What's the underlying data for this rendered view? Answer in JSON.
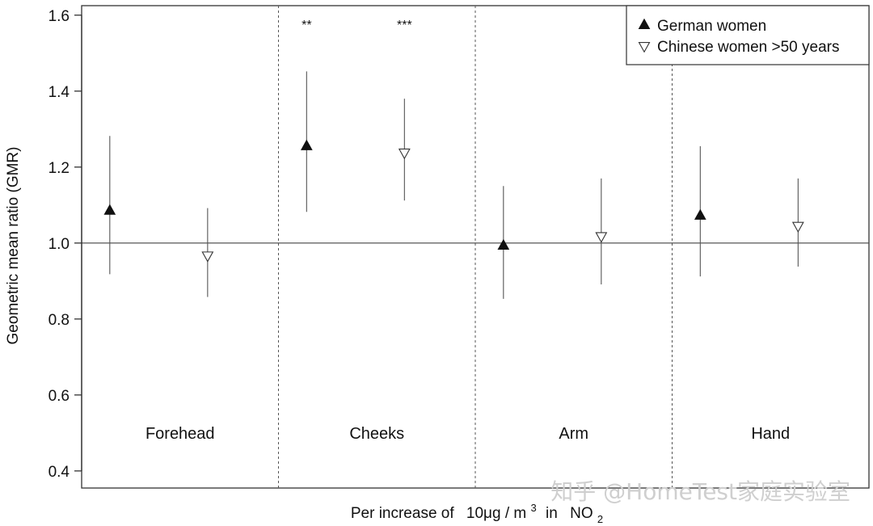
{
  "chart_data": {
    "type": "scatter",
    "title": "",
    "ylabel": "Geometric mean ratio (GMR)",
    "xlabel_parts": {
      "prefix": "Per increase of",
      "value": "10μg",
      "slash": "/",
      "unit": "m",
      "unit_sup": "3",
      "middle": "in",
      "pollutant": "NO",
      "pollutant_sub": "2"
    },
    "ylim": [
      0.355,
      1.625
    ],
    "yticks": [
      0.4,
      0.6,
      0.8,
      1.0,
      1.2,
      1.4,
      1.6
    ],
    "ytick_labels": [
      "0.4",
      "0.6",
      "0.8",
      "1.0",
      "1.2",
      "1.4",
      "1.6"
    ],
    "reference_line": 1.0,
    "categories": [
      "Forehead",
      "Cheeks",
      "Arm",
      "Hand"
    ],
    "series": [
      {
        "name": "German women",
        "marker": "filled-triangle-up",
        "values": [
          1.085,
          1.255,
          0.993,
          1.072
        ],
        "ci_low": [
          0.918,
          1.082,
          0.853,
          0.912
        ],
        "ci_high": [
          1.282,
          1.452,
          1.15,
          1.255
        ]
      },
      {
        "name": "Chinese women >50 years",
        "marker": "open-triangle-down",
        "values": [
          0.967,
          1.238,
          1.018,
          1.045
        ],
        "ci_low": [
          0.858,
          1.112,
          0.891,
          0.938
        ],
        "ci_high": [
          1.092,
          1.38,
          1.17,
          1.17
        ]
      }
    ],
    "significance": [
      {
        "category": "Cheeks",
        "series": "German women",
        "label": "**"
      },
      {
        "category": "Cheeks",
        "series": "Chinese women >50 years",
        "label": "***"
      }
    ],
    "legend_position": "top-right",
    "grid": false
  },
  "watermark": "知乎 @HomeTest家庭实验室"
}
